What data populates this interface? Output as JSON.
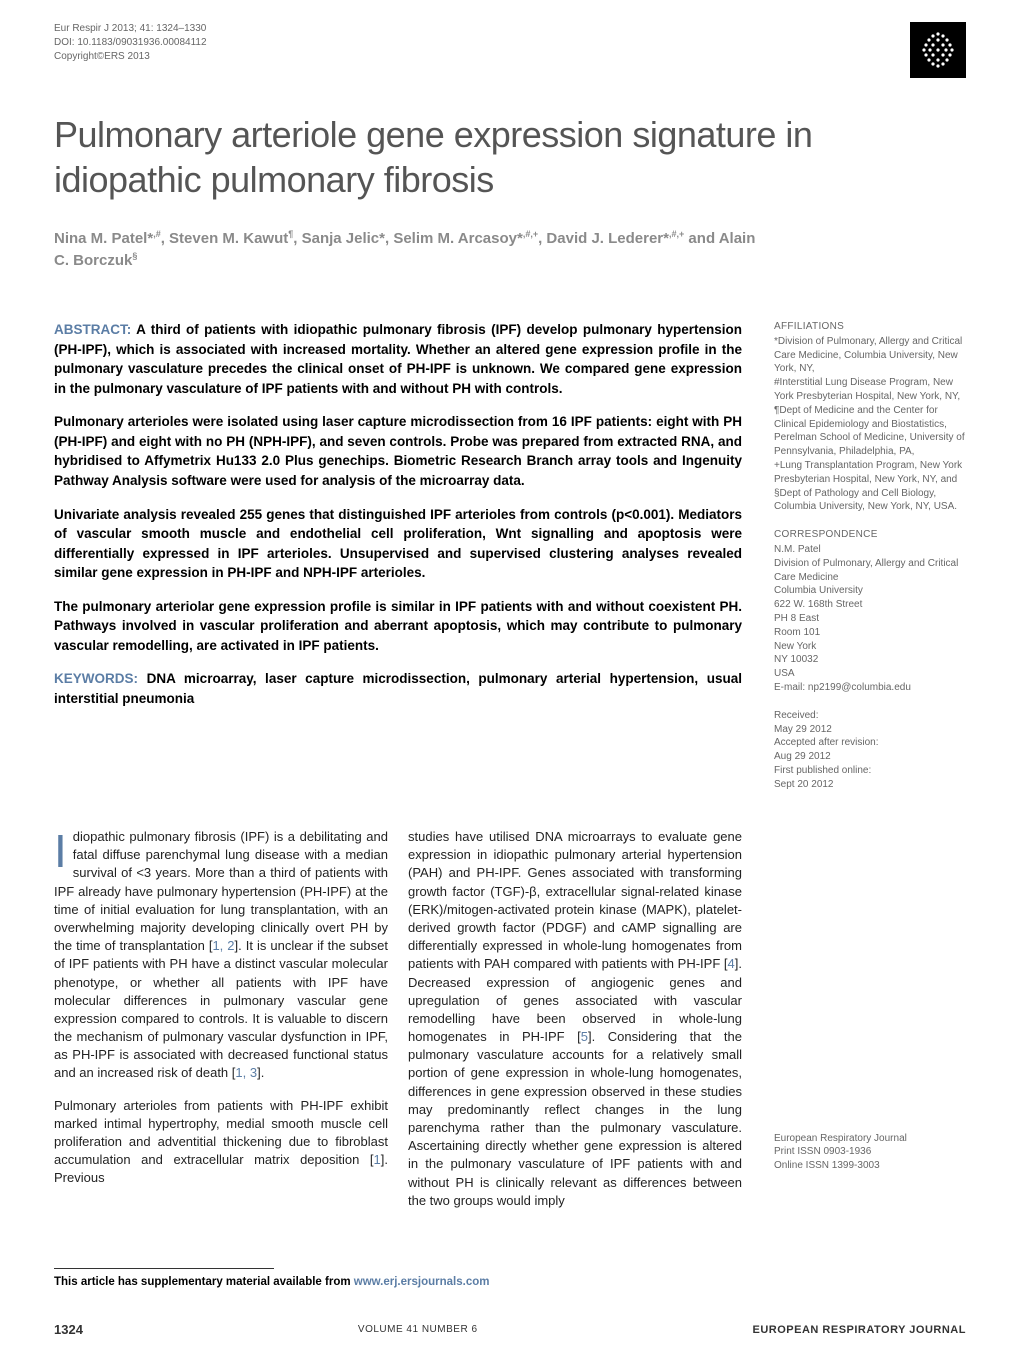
{
  "header": {
    "journal_ref": "Eur Respir J 2013; 41: 1324–1330",
    "doi": "DOI: 10.1183/09031936.00084112",
    "copyright": "Copyright©ERS 2013"
  },
  "logo": {
    "bg_color": "#000000",
    "dot_color": "#ffffff"
  },
  "title": "Pulmonary arteriole gene expression signature in idiopathic pulmonary fibrosis",
  "authors_html": "Nina M. Patel*<sup>,#</sup>, Steven M. Kawut<sup>¶</sup>, Sanja Jelic*, Selim M. Arcasoy*<sup>,#,+</sup>, David J. Lederer*<sup>,#,+</sup> and Alain C. Borczuk<sup>§</sup>",
  "abstract": {
    "label": "ABSTRACT:",
    "p1": "A third of patients with idiopathic pulmonary fibrosis (IPF) develop pulmonary hypertension (PH-IPF), which is associated with increased mortality. Whether an altered gene expression profile in the pulmonary vasculature precedes the clinical onset of PH-IPF is unknown. We compared gene expression in the pulmonary vasculature of IPF patients with and without PH with controls.",
    "p2": "Pulmonary arterioles were isolated using laser capture microdissection from 16 IPF patients: eight with PH (PH-IPF) and eight with no PH (NPH-IPF), and seven controls. Probe was prepared from extracted RNA, and hybridised to Affymetrix Hu133 2.0 Plus genechips. Biometric Research Branch array tools and Ingenuity Pathway Analysis software were used for analysis of the microarray data.",
    "p3": "Univariate analysis revealed 255 genes that distinguished IPF arterioles from controls (p<0.001). Mediators of vascular smooth muscle and endothelial cell proliferation, Wnt signalling and apoptosis were differentially expressed in IPF arterioles. Unsupervised and supervised clustering analyses revealed similar gene expression in PH-IPF and NPH-IPF arterioles.",
    "p4": "The pulmonary arteriolar gene expression profile is similar in IPF patients with and without coexistent PH. Pathways involved in vascular proliferation and aberrant apoptosis, which may contribute to pulmonary vascular remodelling, are activated in IPF patients.",
    "keywords_label": "KEYWORDS:",
    "keywords": "DNA microarray, laser capture microdissection, pulmonary arterial hypertension, usual interstitial pneumonia"
  },
  "body": {
    "dropcap": "I",
    "col1": "diopathic pulmonary fibrosis (IPF) is a debilitating and fatal diffuse parenchymal lung disease with a median survival of <3 years. More than a third of patients with IPF already have pulmonary hypertension (PH-IPF) at the time of initial evaluation for lung transplantation, with an overwhelming majority developing clinically overt PH by the time of transplantation [1, 2]. It is unclear if the subset of IPF patients with PH have a distinct vascular molecular phenotype, or whether all patients with IPF have molecular differences in pulmonary vascular gene expression compared to controls. It is valuable to discern the mechanism of pulmonary vascular dysfunction in IPF, as PH-IPF is associated with decreased functional status and an increased risk of death [1, 3].",
    "col1_p2": "Pulmonary arterioles from patients with PH-IPF exhibit marked intimal hypertrophy, medial smooth muscle cell proliferation and adventitial thickening due to fibroblast accumulation and extracellular matrix deposition [1]. Previous",
    "col2": "studies have utilised DNA microarrays to evaluate gene expression in idiopathic pulmonary arterial hypertension (PAH) and PH-IPF. Genes associated with transforming growth factor (TGF)-β, extracellular signal-related kinase (ERK)/mitogen-activated protein kinase (MAPK), platelet-derived growth factor (PDGF) and cAMP signalling are differentially expressed in whole-lung homogenates from patients with PAH compared with patients with PH-IPF [4]. Decreased expression of angiogenic genes and upregulation of genes associated with vascular remodelling have been observed in whole-lung homogenates in PH-IPF [5]. Considering that the pulmonary vasculature accounts for a relatively small portion of gene expression in whole-lung homogenates, differences in gene expression observed in these studies may predominantly reflect changes in the lung parenchyma rather than the pulmonary vasculature. Ascertaining directly whether gene expression is altered in the pulmonary vasculature of IPF patients with and without PH is clinically relevant as differences between the two groups would imply"
  },
  "supp_note": {
    "text": "This article has supplementary material available from ",
    "link": "www.erj.ersjournals.com"
  },
  "sidebar": {
    "affiliations_label": "AFFILIATIONS",
    "affiliations": "*Division of Pulmonary, Allergy and Critical Care Medicine, Columbia University, New York, NY,\n#Interstitial Lung Disease Program, New York Presbyterian Hospital, New York, NY,\n¶Dept of Medicine and the Center for Clinical Epidemiology and Biostatistics, Perelman School of Medicine, University of Pennsylvania, Philadelphia, PA,\n+Lung Transplantation Program, New York Presbyterian Hospital, New York, NY, and\n§Dept of Pathology and Cell Biology, Columbia University, New York, NY, USA.",
    "correspondence_label": "CORRESPONDENCE",
    "correspondence": "N.M. Patel\nDivision of Pulmonary, Allergy and Critical Care Medicine\nColumbia University\n622 W. 168th Street\nPH 8 East\nRoom 101\nNew York\nNY 10032\nUSA\nE-mail: np2199@columbia.edu",
    "received_label": "Received:",
    "received": "May 29 2012",
    "accepted_label": "Accepted after revision:",
    "accepted": "Aug 29 2012",
    "first_pub_label": "First published online:",
    "first_pub": "Sept 20 2012",
    "journal_block": "European Respiratory Journal\nPrint ISSN 0903-1936\nOnline ISSN 1399-3003"
  },
  "footer": {
    "page": "1324",
    "volume": "VOLUME 41 NUMBER 6",
    "journal": "EUROPEAN RESPIRATORY JOURNAL"
  },
  "colors": {
    "accent": "#5b7da5",
    "muted": "#666666",
    "title_grey": "#555555"
  }
}
